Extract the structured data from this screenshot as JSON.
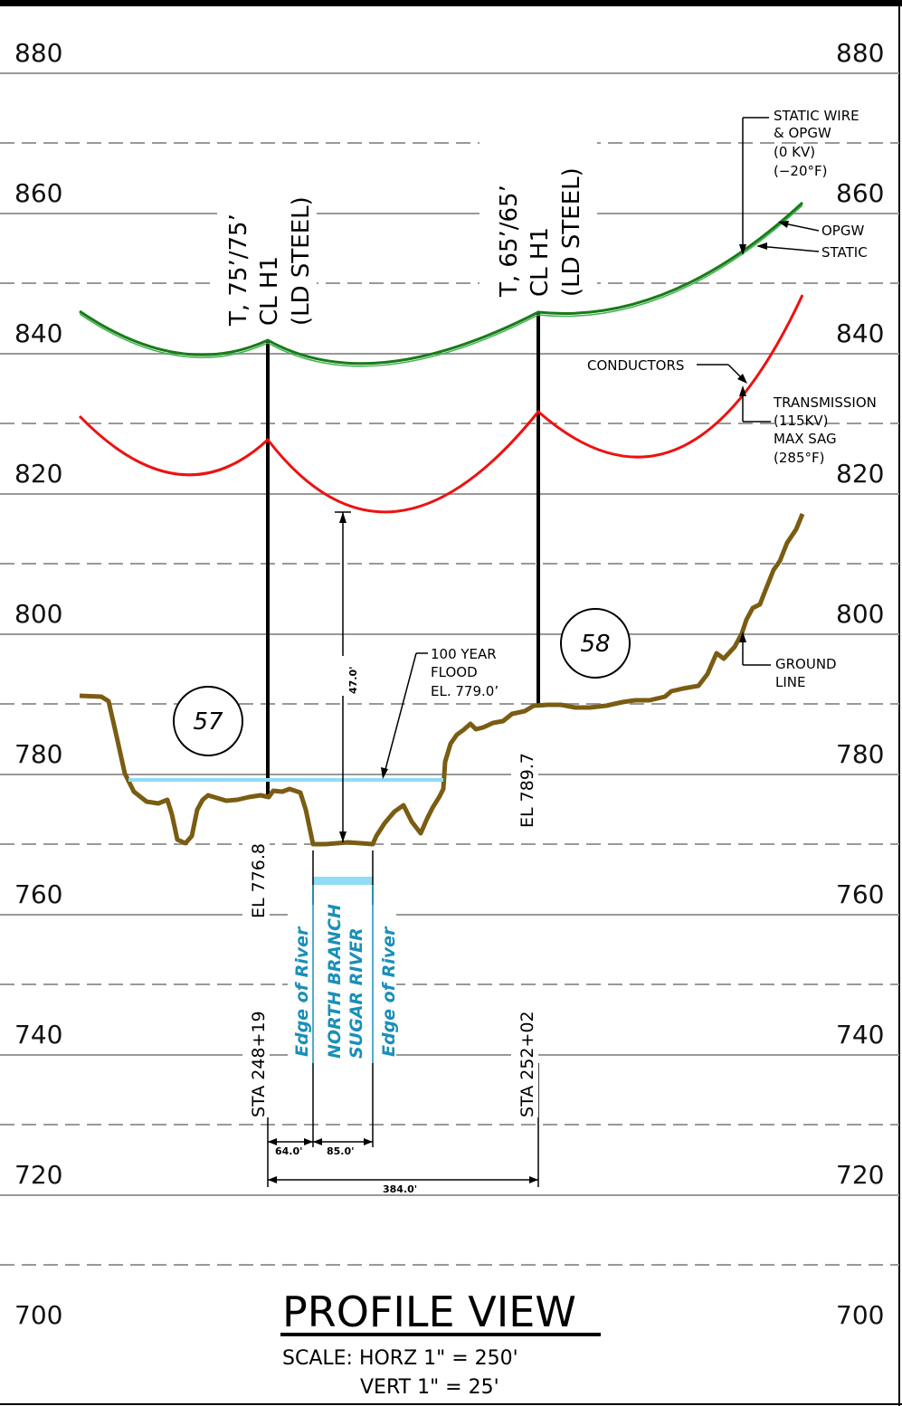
{
  "elevation_labels": [
    "880",
    "860",
    "840",
    "820",
    "800",
    "780",
    "760",
    "740",
    "720",
    "700"
  ],
  "towers": {
    "t57": {
      "line1": "T, 75’/75’",
      "line2": "CL H1",
      "line3": "(LD STEEL)",
      "number": "57",
      "elevation": "EL 776.8",
      "station": "STA 248+19"
    },
    "t58": {
      "line1": "T, 65’/65’",
      "line2": "CL H1",
      "line3": "(LD STEEL)",
      "number": "58",
      "elevation": "EL 789.7",
      "station": "STA 252+02"
    }
  },
  "callouts": {
    "static_wire": [
      "STATIC WIRE",
      "& OPGW",
      "(0 KV)",
      "(−20°F)"
    ],
    "opgw": "OPGW",
    "static": "STATIC",
    "conductors": "CONDUCTORS",
    "transmission": [
      "TRANSMISSION",
      "(115KV)",
      "MAX SAG",
      "(285°F)"
    ],
    "flood": [
      "100 YEAR",
      "FLOOD",
      "EL. 779.0’"
    ],
    "ground_line": [
      "GROUND",
      "LINE"
    ]
  },
  "clearance": "47.0'",
  "river": {
    "edge_left": "Edge of River",
    "name_line1": "NORTH BRANCH",
    "name_line2": "SUGAR RIVER",
    "edge_right": "Edge of River"
  },
  "dimensions": {
    "d1": "64.0'",
    "d2": "85.0'",
    "total": "384.0'"
  },
  "title": "PROFILE VIEW",
  "scale": {
    "horz": "SCALE: HORZ 1\" = 250'",
    "vert": "VERT 1\" = 25'"
  },
  "colors": {
    "static": "#1a7a1a",
    "conductor": "#ee1111",
    "ground": "#7a5c12",
    "water": "#8fdcf4",
    "river_text": "#1a8fb8"
  }
}
